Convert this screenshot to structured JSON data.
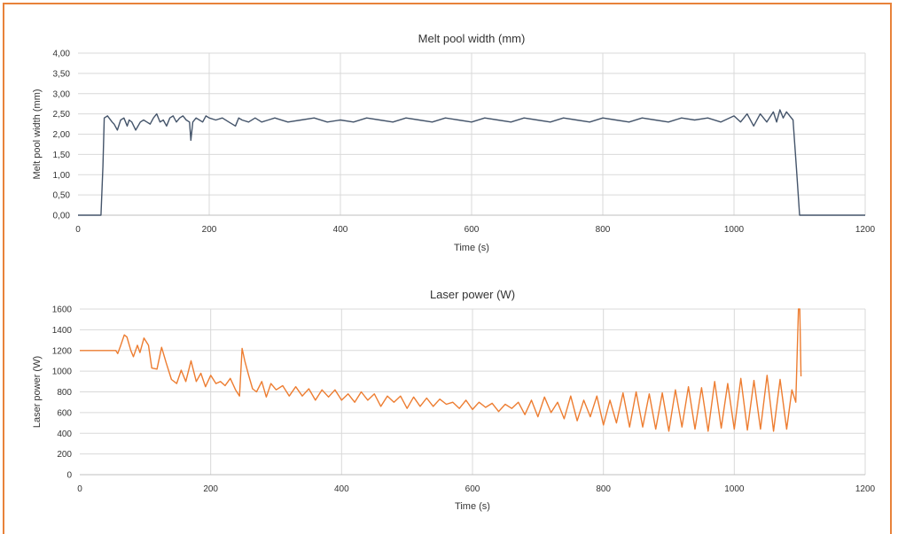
{
  "chart_data": [
    {
      "type": "line",
      "title": "Melt pool width (mm)",
      "xlabel": "Time (s)",
      "ylabel": "Melt pool width (mm)",
      "xlim": [
        0,
        1200
      ],
      "ylim": [
        0,
        4.0
      ],
      "xticks": [
        0,
        200,
        400,
        600,
        800,
        1000,
        1200
      ],
      "yticks": [
        "0,00",
        "0,50",
        "1,00",
        "1,50",
        "2,00",
        "2,50",
        "3,00",
        "3,50",
        "4,00"
      ],
      "yticks_values": [
        0,
        0.5,
        1.0,
        1.5,
        2.0,
        2.5,
        3.0,
        3.5,
        4.0
      ],
      "grid": true,
      "series": [
        {
          "color": "#44546a",
          "x": [
            0,
            35,
            38,
            40,
            45,
            52,
            55,
            60,
            65,
            70,
            75,
            78,
            82,
            88,
            95,
            100,
            105,
            110,
            115,
            120,
            125,
            130,
            135,
            140,
            145,
            150,
            155,
            160,
            165,
            170,
            172,
            175,
            180,
            185,
            190,
            195,
            200,
            210,
            220,
            230,
            240,
            245,
            250,
            260,
            270,
            280,
            290,
            300,
            320,
            340,
            360,
            380,
            400,
            420,
            440,
            460,
            480,
            500,
            520,
            540,
            560,
            580,
            600,
            620,
            640,
            660,
            680,
            700,
            720,
            740,
            760,
            780,
            800,
            820,
            840,
            860,
            880,
            900,
            920,
            940,
            960,
            980,
            1000,
            1010,
            1020,
            1030,
            1040,
            1050,
            1060,
            1065,
            1070,
            1075,
            1080,
            1085,
            1090,
            1095,
            1100,
            1200
          ],
          "y": [
            0,
            0,
            1.2,
            2.4,
            2.45,
            2.3,
            2.25,
            2.1,
            2.35,
            2.4,
            2.2,
            2.35,
            2.3,
            2.1,
            2.3,
            2.35,
            2.3,
            2.25,
            2.4,
            2.5,
            2.3,
            2.35,
            2.2,
            2.4,
            2.45,
            2.3,
            2.4,
            2.45,
            2.35,
            2.3,
            1.85,
            2.3,
            2.4,
            2.35,
            2.3,
            2.45,
            2.4,
            2.35,
            2.4,
            2.3,
            2.2,
            2.4,
            2.35,
            2.3,
            2.4,
            2.3,
            2.35,
            2.4,
            2.3,
            2.35,
            2.4,
            2.3,
            2.35,
            2.3,
            2.4,
            2.35,
            2.3,
            2.4,
            2.35,
            2.3,
            2.4,
            2.35,
            2.3,
            2.4,
            2.35,
            2.3,
            2.4,
            2.35,
            2.3,
            2.4,
            2.35,
            2.3,
            2.4,
            2.35,
            2.3,
            2.4,
            2.35,
            2.3,
            2.4,
            2.35,
            2.4,
            2.3,
            2.45,
            2.3,
            2.5,
            2.2,
            2.5,
            2.3,
            2.55,
            2.3,
            2.6,
            2.4,
            2.55,
            2.45,
            2.35,
            1.2,
            0,
            0
          ]
        }
      ]
    },
    {
      "type": "line",
      "title": "Laser power (W)",
      "xlabel": "Time (s)",
      "ylabel": "Laser power (W)",
      "xlim": [
        0,
        1200
      ],
      "ylim": [
        0,
        1600
      ],
      "xticks": [
        0,
        200,
        400,
        600,
        800,
        1000,
        1200
      ],
      "yticks": [
        "0",
        "200",
        "400",
        "600",
        "800",
        "1000",
        "1200",
        "1400",
        "1600"
      ],
      "yticks_values": [
        0,
        200,
        400,
        600,
        800,
        1000,
        1200,
        1400,
        1600
      ],
      "grid": true,
      "series": [
        {
          "color": "#ed7d31",
          "x": [
            0,
            55,
            58,
            62,
            68,
            72,
            78,
            82,
            88,
            92,
            98,
            105,
            110,
            118,
            125,
            132,
            140,
            148,
            155,
            162,
            170,
            178,
            185,
            192,
            200,
            208,
            215,
            222,
            230,
            238,
            244,
            248,
            252,
            258,
            264,
            270,
            278,
            285,
            292,
            300,
            310,
            320,
            330,
            340,
            350,
            360,
            370,
            380,
            390,
            400,
            410,
            420,
            430,
            440,
            450,
            460,
            470,
            480,
            490,
            500,
            510,
            520,
            530,
            540,
            550,
            560,
            570,
            580,
            590,
            600,
            610,
            620,
            630,
            640,
            650,
            660,
            670,
            680,
            690,
            700,
            710,
            720,
            730,
            740,
            750,
            760,
            770,
            780,
            790,
            800,
            810,
            820,
            830,
            840,
            850,
            860,
            870,
            880,
            890,
            900,
            910,
            920,
            930,
            940,
            950,
            960,
            970,
            980,
            990,
            1000,
            1010,
            1020,
            1030,
            1040,
            1050,
            1060,
            1070,
            1080,
            1088,
            1094,
            1098,
            1100,
            1102
          ],
          "y": [
            1200,
            1200,
            1170,
            1240,
            1350,
            1330,
            1200,
            1140,
            1250,
            1180,
            1320,
            1250,
            1030,
            1020,
            1230,
            1080,
            920,
            880,
            1010,
            900,
            1100,
            900,
            980,
            850,
            960,
            880,
            900,
            860,
            930,
            820,
            760,
            1220,
            1100,
            960,
            830,
            800,
            900,
            750,
            880,
            820,
            860,
            760,
            850,
            760,
            830,
            720,
            820,
            750,
            820,
            720,
            780,
            700,
            800,
            720,
            780,
            660,
            760,
            700,
            760,
            640,
            750,
            660,
            740,
            660,
            730,
            680,
            700,
            640,
            720,
            630,
            700,
            650,
            690,
            610,
            680,
            640,
            700,
            580,
            720,
            560,
            750,
            600,
            700,
            540,
            760,
            520,
            720,
            560,
            760,
            480,
            720,
            500,
            790,
            460,
            800,
            460,
            780,
            440,
            790,
            420,
            820,
            460,
            850,
            440,
            840,
            420,
            900,
            450,
            880,
            440,
            930,
            430,
            910,
            440,
            960,
            420,
            920,
            440,
            820,
            700,
            1600,
            1600,
            950
          ]
        }
      ]
    }
  ]
}
